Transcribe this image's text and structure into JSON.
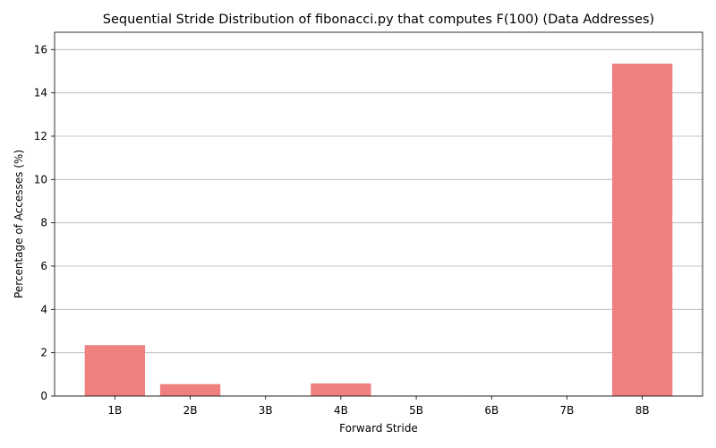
{
  "chart_data": {
    "type": "bar",
    "title": "Sequential Stride Distribution of fibonacci.py that computes F(100) (Data Addresses)",
    "xlabel": "Forward Stride",
    "ylabel": "Percentage of Accesses (%)",
    "categories": [
      "1B",
      "2B",
      "3B",
      "4B",
      "5B",
      "6B",
      "7B",
      "8B"
    ],
    "values": [
      2.35,
      0.55,
      0.02,
      0.58,
      0.02,
      0.02,
      0.02,
      15.35
    ],
    "ylim": [
      0,
      16.8
    ],
    "yticks": [
      0,
      2,
      4,
      6,
      8,
      10,
      12,
      14,
      16
    ],
    "grid": "y",
    "bar_color": "#f08080",
    "legend": "none"
  }
}
